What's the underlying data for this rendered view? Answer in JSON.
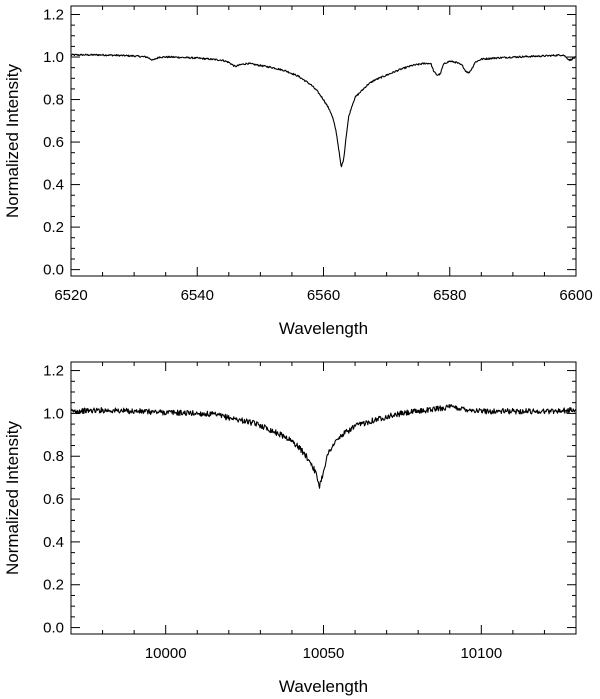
{
  "chart_data": [
    {
      "type": "line",
      "title": "",
      "xlabel": "Wavelength",
      "ylabel": "Normalized Intensity",
      "xlim": [
        6520,
        6600
      ],
      "ylim": [
        -0.03,
        1.24
      ],
      "x_ticks": [
        "6520",
        "6540",
        "6560",
        "6580",
        "6600"
      ],
      "y_ticks": [
        "0.0",
        "0.2",
        "0.4",
        "0.6",
        "0.8",
        "1.0",
        "1.2"
      ],
      "grid": false,
      "series": [
        {
          "x": [
            6520,
            6525,
            6530,
            6532,
            6533,
            6534,
            6536,
            6540,
            6544,
            6545,
            6546,
            6547,
            6548,
            6550,
            6552,
            6554,
            6556,
            6558,
            6559,
            6560,
            6561,
            6561.5,
            6562,
            6562.4,
            6562.8,
            6563.2,
            6563.6,
            6564,
            6564.5,
            6565,
            6566,
            6567,
            6568,
            6570,
            6572,
            6574,
            6576,
            6577,
            6577.5,
            6578,
            6578.5,
            6579,
            6579.5,
            6580,
            6581,
            6582,
            6582.5,
            6583,
            6583.5,
            6584,
            6585,
            6587,
            6590,
            6595,
            6598,
            6599,
            6600
          ],
          "values": [
            1.01,
            1.01,
            1.005,
            1.0,
            0.985,
            1.0,
            1.0,
            0.995,
            0.985,
            0.975,
            0.955,
            0.965,
            0.97,
            0.96,
            0.95,
            0.935,
            0.91,
            0.87,
            0.84,
            0.8,
            0.75,
            0.71,
            0.65,
            0.57,
            0.48,
            0.52,
            0.63,
            0.72,
            0.77,
            0.81,
            0.84,
            0.87,
            0.89,
            0.915,
            0.94,
            0.96,
            0.97,
            0.97,
            0.93,
            0.915,
            0.92,
            0.965,
            0.975,
            0.98,
            0.975,
            0.96,
            0.935,
            0.925,
            0.945,
            0.975,
            0.99,
            0.995,
            1.0,
            1.005,
            1.01,
            0.985,
            1.0
          ]
        }
      ]
    },
    {
      "type": "line",
      "title": "",
      "xlabel": "Wavelength",
      "ylabel": "Normalized Intensity",
      "xlim": [
        9970,
        10130
      ],
      "ylim": [
        -0.03,
        1.24
      ],
      "x_ticks": [
        "10000",
        "10050",
        "10100"
      ],
      "y_ticks": [
        "0.0",
        "0.2",
        "0.4",
        "0.6",
        "0.8",
        "1.0",
        "1.2"
      ],
      "grid": false,
      "series": [
        {
          "x": [
            9970,
            9980,
            9990,
            10000,
            10010,
            10015,
            10020,
            10025,
            10030,
            10035,
            10038,
            10040,
            10042,
            10044,
            10046,
            10047,
            10048,
            10048.7,
            10049.5,
            10050.3,
            10051,
            10052,
            10054,
            10056,
            10058,
            10060,
            10065,
            10070,
            10075,
            10080,
            10085,
            10090,
            10095,
            10100,
            10110,
            10120,
            10130
          ],
          "values": [
            1.01,
            1.015,
            1.01,
            1.005,
            1.0,
            0.995,
            0.98,
            0.965,
            0.945,
            0.91,
            0.89,
            0.87,
            0.845,
            0.81,
            0.77,
            0.74,
            0.7,
            0.66,
            0.7,
            0.75,
            0.79,
            0.83,
            0.87,
            0.9,
            0.92,
            0.94,
            0.965,
            0.985,
            1.0,
            1.01,
            1.02,
            1.03,
            1.02,
            1.01,
            1.01,
            1.01,
            1.015
          ]
        }
      ]
    }
  ]
}
